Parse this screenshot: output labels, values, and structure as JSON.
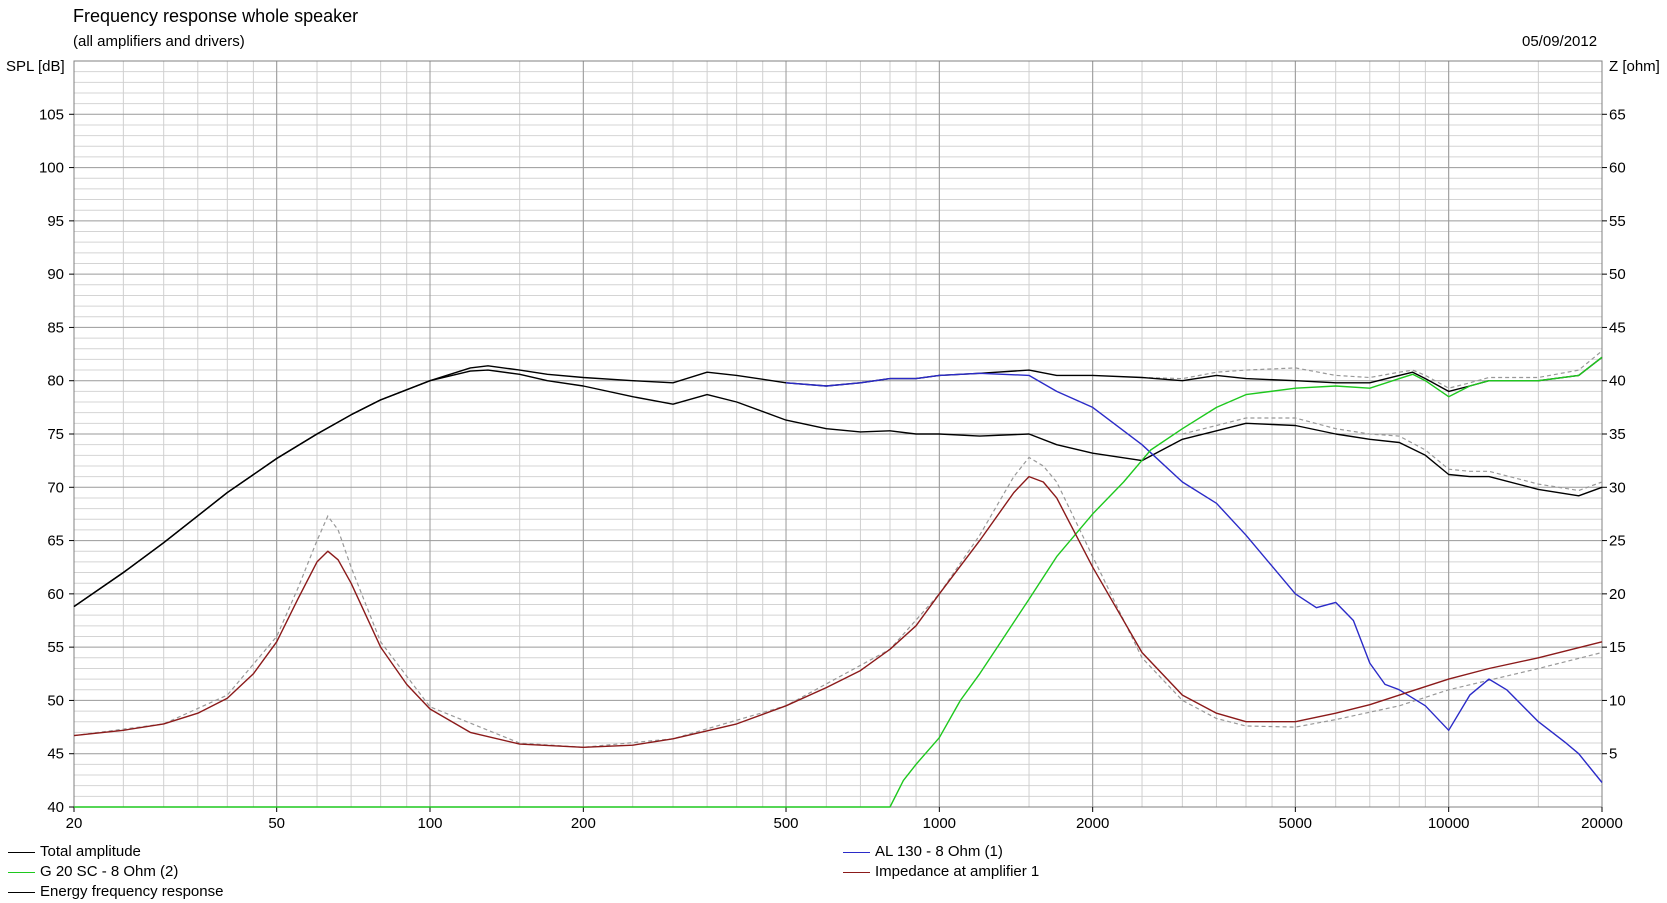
{
  "header": {
    "title": "Frequency response whole speaker",
    "subtitle": "(all amplifiers and drivers)",
    "date": "05/09/2012"
  },
  "chart_data": {
    "type": "line",
    "title": "Frequency response whole speaker",
    "subtitle": "(all amplifiers and drivers)",
    "xscale": "log",
    "xlim": [
      20,
      20000
    ],
    "x_ticks": [
      20,
      50,
      100,
      200,
      500,
      1000,
      2000,
      5000,
      10000,
      20000
    ],
    "ylabel": "SPL [dB]",
    "ylim": [
      40,
      110
    ],
    "y_ticks": [
      40,
      45,
      50,
      55,
      60,
      65,
      70,
      75,
      80,
      85,
      90,
      95,
      100,
      105
    ],
    "y2label": "Z [ohm]",
    "y2lim": [
      0,
      70
    ],
    "y2_ticks": [
      5,
      10,
      15,
      20,
      25,
      30,
      35,
      40,
      45,
      50,
      55,
      60,
      65
    ],
    "grid": true,
    "legend_position": "bottom",
    "series": [
      {
        "name": "Total amplitude",
        "color": "#000000",
        "axis": "left",
        "points": [
          [
            20,
            58.8
          ],
          [
            25,
            62
          ],
          [
            30,
            64.8
          ],
          [
            40,
            69.5
          ],
          [
            50,
            72.7
          ],
          [
            60,
            75
          ],
          [
            70,
            76.8
          ],
          [
            80,
            78.2
          ],
          [
            100,
            80
          ],
          [
            120,
            81.2
          ],
          [
            130,
            81.4
          ],
          [
            150,
            81
          ],
          [
            170,
            80.6
          ],
          [
            200,
            80.3
          ],
          [
            250,
            80
          ],
          [
            300,
            79.8
          ],
          [
            350,
            80.8
          ],
          [
            400,
            80.5
          ],
          [
            500,
            79.8
          ],
          [
            600,
            79.5
          ],
          [
            700,
            79.8
          ],
          [
            800,
            80.2
          ],
          [
            900,
            80.2
          ],
          [
            1000,
            80.5
          ],
          [
            1200,
            80.7
          ],
          [
            1500,
            81
          ],
          [
            1700,
            80.5
          ],
          [
            2000,
            80.5
          ],
          [
            2500,
            80.3
          ],
          [
            3000,
            80
          ],
          [
            3500,
            80.5
          ],
          [
            4000,
            80.2
          ],
          [
            5000,
            80
          ],
          [
            6000,
            79.8
          ],
          [
            7000,
            79.8
          ],
          [
            8000,
            80.5
          ],
          [
            8500,
            80.8
          ],
          [
            9000,
            80.2
          ],
          [
            10000,
            79
          ],
          [
            11000,
            79.5
          ],
          [
            12000,
            80
          ],
          [
            15000,
            80
          ],
          [
            18000,
            80.5
          ],
          [
            20000,
            82.2
          ]
        ]
      },
      {
        "name": "Energy frequency response",
        "color": "#000000",
        "axis": "left",
        "points": [
          [
            20,
            58.8
          ],
          [
            25,
            62
          ],
          [
            30,
            64.8
          ],
          [
            40,
            69.5
          ],
          [
            50,
            72.7
          ],
          [
            60,
            75
          ],
          [
            70,
            76.8
          ],
          [
            80,
            78.2
          ],
          [
            100,
            80
          ],
          [
            120,
            80.9
          ],
          [
            130,
            81
          ],
          [
            150,
            80.6
          ],
          [
            170,
            80
          ],
          [
            200,
            79.5
          ],
          [
            250,
            78.5
          ],
          [
            300,
            77.8
          ],
          [
            350,
            78.7
          ],
          [
            400,
            78
          ],
          [
            500,
            76.3
          ],
          [
            600,
            75.5
          ],
          [
            700,
            75.2
          ],
          [
            800,
            75.3
          ],
          [
            900,
            75
          ],
          [
            1000,
            75
          ],
          [
            1200,
            74.8
          ],
          [
            1500,
            75
          ],
          [
            1700,
            74
          ],
          [
            2000,
            73.2
          ],
          [
            2500,
            72.5
          ],
          [
            3000,
            74.5
          ],
          [
            3500,
            75.3
          ],
          [
            4000,
            76
          ],
          [
            5000,
            75.8
          ],
          [
            6000,
            75
          ],
          [
            7000,
            74.5
          ],
          [
            8000,
            74.2
          ],
          [
            9000,
            73
          ],
          [
            10000,
            71.2
          ],
          [
            11000,
            71
          ],
          [
            12000,
            71
          ],
          [
            15000,
            69.8
          ],
          [
            18000,
            69.2
          ],
          [
            20000,
            70
          ]
        ]
      },
      {
        "name": "AL 130 - 8 Ohm (1)",
        "color": "#2b2bc8",
        "axis": "left",
        "points": [
          [
            500,
            79.8
          ],
          [
            600,
            79.5
          ],
          [
            700,
            79.8
          ],
          [
            800,
            80.2
          ],
          [
            900,
            80.2
          ],
          [
            1000,
            80.5
          ],
          [
            1200,
            80.7
          ],
          [
            1500,
            80.5
          ],
          [
            1700,
            79
          ],
          [
            2000,
            77.5
          ],
          [
            2500,
            74
          ],
          [
            3000,
            70.5
          ],
          [
            3500,
            68.5
          ],
          [
            4000,
            65.5
          ],
          [
            5000,
            60
          ],
          [
            5500,
            58.7
          ],
          [
            6000,
            59.2
          ],
          [
            6500,
            57.5
          ],
          [
            7000,
            53.5
          ],
          [
            7500,
            51.5
          ],
          [
            8000,
            51
          ],
          [
            9000,
            49.5
          ],
          [
            10000,
            47.2
          ],
          [
            11000,
            50.5
          ],
          [
            12000,
            52
          ],
          [
            13000,
            51
          ],
          [
            15000,
            48
          ],
          [
            17000,
            46
          ],
          [
            18000,
            45
          ],
          [
            20000,
            42.3
          ]
        ]
      },
      {
        "name": "G 20 SC - 8 Ohm (2)",
        "color": "#1ec81e",
        "axis": "left",
        "points": [
          [
            20,
            40
          ],
          [
            100,
            40
          ],
          [
            500,
            40
          ],
          [
            800,
            40
          ],
          [
            850,
            42.5
          ],
          [
            900,
            44
          ],
          [
            1000,
            46.5
          ],
          [
            1100,
            50
          ],
          [
            1200,
            52.5
          ],
          [
            1300,
            55
          ],
          [
            1500,
            59.5
          ],
          [
            1700,
            63.5
          ],
          [
            2000,
            67.5
          ],
          [
            2300,
            70.5
          ],
          [
            2600,
            73.5
          ],
          [
            3000,
            75.5
          ],
          [
            3500,
            77.5
          ],
          [
            4000,
            78.7
          ],
          [
            5000,
            79.3
          ],
          [
            6000,
            79.5
          ],
          [
            7000,
            79.3
          ],
          [
            8000,
            80.2
          ],
          [
            8500,
            80.6
          ],
          [
            9000,
            80
          ],
          [
            10000,
            78.5
          ],
          [
            11000,
            79.5
          ],
          [
            12000,
            80
          ],
          [
            15000,
            80
          ],
          [
            18000,
            80.5
          ],
          [
            20000,
            82.2
          ]
        ]
      },
      {
        "name": "Impedance at amplifier 1",
        "color": "#8b1a1a",
        "axis": "right",
        "points": [
          [
            20,
            6.7
          ],
          [
            25,
            7.2
          ],
          [
            30,
            7.8
          ],
          [
            35,
            8.8
          ],
          [
            40,
            10.2
          ],
          [
            45,
            12.5
          ],
          [
            50,
            15.5
          ],
          [
            55,
            19.5
          ],
          [
            60,
            23
          ],
          [
            63,
            24
          ],
          [
            66,
            23.2
          ],
          [
            70,
            21
          ],
          [
            80,
            15
          ],
          [
            90,
            11.5
          ],
          [
            100,
            9.2
          ],
          [
            120,
            7
          ],
          [
            150,
            5.9
          ],
          [
            200,
            5.6
          ],
          [
            250,
            5.8
          ],
          [
            300,
            6.4
          ],
          [
            400,
            7.8
          ],
          [
            500,
            9.5
          ],
          [
            600,
            11.2
          ],
          [
            700,
            12.8
          ],
          [
            800,
            14.8
          ],
          [
            900,
            17
          ],
          [
            1000,
            20
          ],
          [
            1200,
            25
          ],
          [
            1400,
            29.5
          ],
          [
            1500,
            31
          ],
          [
            1600,
            30.5
          ],
          [
            1700,
            29
          ],
          [
            2000,
            22.5
          ],
          [
            2500,
            14.5
          ],
          [
            3000,
            10.5
          ],
          [
            3500,
            8.8
          ],
          [
            4000,
            8
          ],
          [
            5000,
            8
          ],
          [
            6000,
            8.8
          ],
          [
            7000,
            9.6
          ],
          [
            8000,
            10.5
          ],
          [
            10000,
            12
          ],
          [
            12000,
            13
          ],
          [
            15000,
            14
          ],
          [
            20000,
            15.5
          ]
        ]
      }
    ],
    "reference_curves_dashed": [
      {
        "color": "#999999",
        "axis": "right",
        "points": [
          [
            20,
            6.7
          ],
          [
            30,
            7.8
          ],
          [
            40,
            10.5
          ],
          [
            50,
            16
          ],
          [
            55,
            20.5
          ],
          [
            60,
            25
          ],
          [
            63,
            27.3
          ],
          [
            66,
            26
          ],
          [
            70,
            22.5
          ],
          [
            80,
            15.5
          ],
          [
            100,
            9.4
          ],
          [
            150,
            6
          ],
          [
            200,
            5.6
          ],
          [
            300,
            6.4
          ],
          [
            500,
            9.5
          ],
          [
            800,
            14.8
          ],
          [
            1000,
            20
          ],
          [
            1200,
            25.5
          ],
          [
            1400,
            31
          ],
          [
            1500,
            32.8
          ],
          [
            1600,
            32
          ],
          [
            1700,
            30.5
          ],
          [
            2000,
            23.5
          ],
          [
            2500,
            14
          ],
          [
            3000,
            10
          ],
          [
            3500,
            8.3
          ],
          [
            4000,
            7.6
          ],
          [
            5000,
            7.5
          ],
          [
            6000,
            8.2
          ],
          [
            8000,
            9.5
          ],
          [
            10000,
            11
          ],
          [
            15000,
            13
          ],
          [
            20000,
            14.5
          ]
        ]
      },
      {
        "color": "#999999",
        "axis": "left",
        "points": [
          [
            2500,
            80.3
          ],
          [
            3000,
            80.2
          ],
          [
            3500,
            80.8
          ],
          [
            4000,
            81
          ],
          [
            5000,
            81.2
          ],
          [
            6000,
            80.5
          ],
          [
            7000,
            80.3
          ],
          [
            8000,
            80.8
          ],
          [
            8500,
            81
          ],
          [
            9000,
            80.5
          ],
          [
            10000,
            79.3
          ],
          [
            11000,
            79.8
          ],
          [
            12000,
            80.3
          ],
          [
            15000,
            80.3
          ],
          [
            18000,
            81
          ],
          [
            20000,
            82.8
          ]
        ]
      },
      {
        "color": "#999999",
        "axis": "left",
        "points": [
          [
            3000,
            75
          ],
          [
            3500,
            75.8
          ],
          [
            4000,
            76.5
          ],
          [
            5000,
            76.5
          ],
          [
            6000,
            75.5
          ],
          [
            7000,
            75
          ],
          [
            8000,
            74.8
          ],
          [
            9000,
            73.5
          ],
          [
            10000,
            71.7
          ],
          [
            11000,
            71.5
          ],
          [
            12000,
            71.5
          ],
          [
            15000,
            70.3
          ],
          [
            18000,
            69.7
          ],
          [
            20000,
            70.5
          ]
        ]
      }
    ]
  },
  "legend": [
    {
      "label": "Total amplitude",
      "color": "#000000"
    },
    {
      "label": "G 20 SC - 8 Ohm (2)",
      "color": "#1ec81e"
    },
    {
      "label": "Energy frequency response",
      "color": "#000000"
    },
    {
      "label": "AL 130 - 8 Ohm (1)",
      "color": "#2b2bc8"
    },
    {
      "label": "Impedance at amplifier 1",
      "color": "#8b1a1a"
    }
  ]
}
